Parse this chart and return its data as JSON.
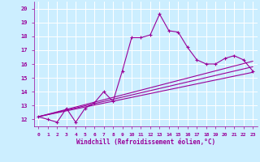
{
  "xlabel": "Windchill (Refroidissement éolien,°C)",
  "bg_color": "#cceeff",
  "grid_color": "#ffffff",
  "line_color": "#990099",
  "xlim": [
    -0.5,
    23.5
  ],
  "ylim": [
    11.5,
    20.5
  ],
  "xticks": [
    0,
    1,
    2,
    3,
    4,
    5,
    6,
    7,
    8,
    9,
    10,
    11,
    12,
    13,
    14,
    15,
    16,
    17,
    18,
    19,
    20,
    21,
    22,
    23
  ],
  "yticks": [
    12,
    13,
    14,
    15,
    16,
    17,
    18,
    19,
    20
  ],
  "curve1_x": [
    0,
    1,
    2,
    3,
    4,
    5,
    6,
    7,
    8,
    9,
    10,
    11,
    12,
    13,
    14,
    15,
    16,
    17,
    18,
    19,
    20,
    21,
    22,
    23
  ],
  "curve1_y": [
    12.2,
    12.0,
    11.8,
    12.8,
    11.8,
    12.8,
    13.2,
    14.0,
    13.3,
    15.5,
    17.9,
    17.9,
    18.1,
    19.6,
    18.4,
    18.3,
    17.2,
    16.3,
    16.0,
    16.0,
    16.4,
    16.6,
    16.3,
    15.5
  ],
  "curve2_x": [
    0,
    23
  ],
  "curve2_y": [
    12.2,
    15.4
  ],
  "curve3_x": [
    0,
    23
  ],
  "curve3_y": [
    12.2,
    15.8
  ],
  "curve4_x": [
    0,
    23
  ],
  "curve4_y": [
    12.2,
    16.2
  ]
}
